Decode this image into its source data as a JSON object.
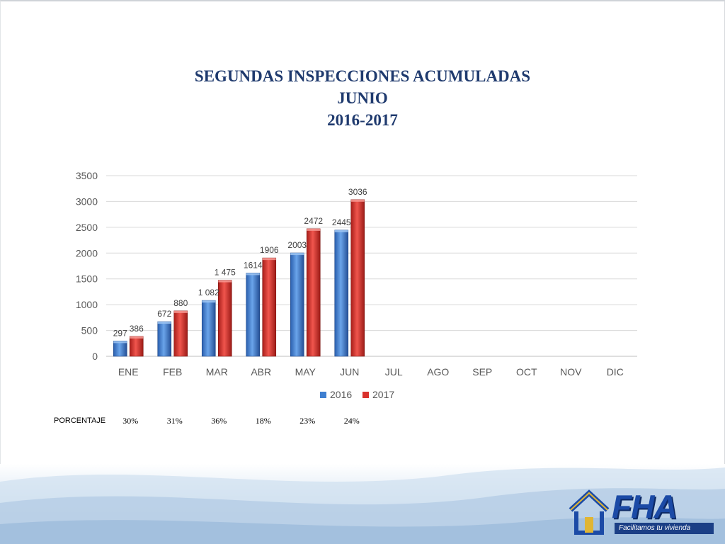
{
  "title": {
    "line1": "SEGUNDAS INSPECCIONES ACUMULADAS",
    "line2": "JUNIO",
    "line3": "2016-2017"
  },
  "chart_data": {
    "type": "bar",
    "categories": [
      "ENE",
      "FEB",
      "MAR",
      "ABR",
      "MAY",
      "JUN",
      "JUL",
      "AGO",
      "SEP",
      "OCT",
      "NOV",
      "DIC"
    ],
    "series": [
      {
        "name": "2016",
        "color": "#3f7fd0",
        "values": [
          297,
          672,
          1082,
          1614,
          2003,
          2445,
          null,
          null,
          null,
          null,
          null,
          null
        ],
        "labels": [
          "297",
          "672",
          "1 082",
          "1614",
          "2003",
          "2445",
          "",
          "",
          "",
          "",
          "",
          ""
        ]
      },
      {
        "name": "2017",
        "color": "#d9322d",
        "values": [
          386,
          880,
          1475,
          1906,
          2472,
          3036,
          null,
          null,
          null,
          null,
          null,
          null
        ],
        "labels": [
          "386",
          "880",
          "1 475",
          "1906",
          "2472",
          "3036",
          "",
          "",
          "",
          "",
          "",
          ""
        ]
      }
    ],
    "ylim": [
      0,
      3500
    ],
    "yticks": [
      0,
      500,
      1000,
      1500,
      2000,
      2500,
      3000,
      3500
    ],
    "grid": true,
    "legend": "bottom"
  },
  "percentages": {
    "label": "PORCENTAJE",
    "values": [
      "30%",
      "31%",
      "36%",
      "18%",
      "23%",
      "24%"
    ]
  },
  "logo": {
    "text": "FHA",
    "tagline": "Facilitamos tu vivienda"
  }
}
